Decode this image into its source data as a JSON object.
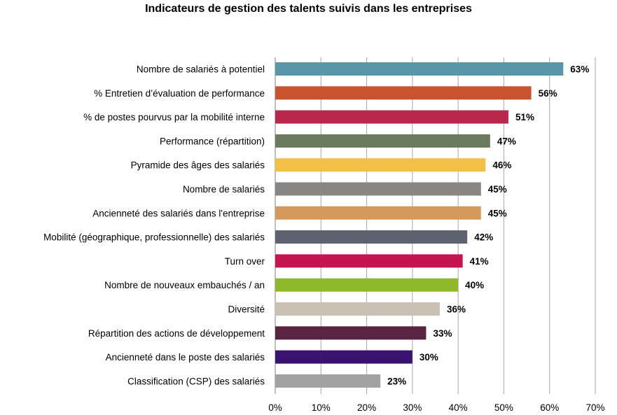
{
  "chart_data": {
    "type": "bar",
    "orientation": "horizontal",
    "title": "Indicateurs de gestion des talents suivis dans les entreprises",
    "categories": [
      "Nombre de salariés à potentiel",
      "% Entretien d’évaluation de performance",
      "% de postes pourvus par la mobilité interne",
      "Performance (répartition)",
      "Pyramide des âges des salariés",
      "Nombre de salariés",
      "Ancienneté des salariés dans l'entreprise",
      "Mobilité (géographique, professionnelle) des salariés",
      "Turn over",
      "Nombre de nouveaux embauchés / an",
      "Diversité",
      "Répartition des actions de développement",
      "Ancienneté dans le poste des salariés",
      "Classification (CSP) des salariés"
    ],
    "values": [
      63,
      56,
      51,
      47,
      46,
      45,
      45,
      42,
      41,
      40,
      36,
      33,
      30,
      23
    ],
    "value_labels": [
      "63%",
      "56%",
      "51%",
      "47%",
      "46%",
      "45%",
      "45%",
      "42%",
      "41%",
      "40%",
      "36%",
      "33%",
      "30%",
      "23%"
    ],
    "colors": [
      "#5b95a8",
      "#c8542f",
      "#b8284c",
      "#6b7a5f",
      "#f2bf49",
      "#888682",
      "#d29a5c",
      "#5e6170",
      "#c5144f",
      "#8db92a",
      "#c8c1b4",
      "#5a2443",
      "#3a1370",
      "#a1a1a1"
    ],
    "xlim": [
      0,
      70
    ],
    "x_ticks": [
      0,
      10,
      20,
      30,
      40,
      50,
      60,
      70
    ],
    "x_tick_labels": [
      "0%",
      "10%",
      "20%",
      "30%",
      "40%",
      "50%",
      "60%",
      "70%"
    ],
    "xlabel": "",
    "ylabel": "",
    "grid": true,
    "legend": "none"
  }
}
